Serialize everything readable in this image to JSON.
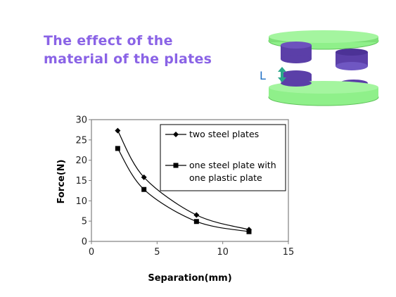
{
  "slide": {
    "title_line1": "The effect of the",
    "title_line2": "material of the plates",
    "title_color": "#8a63e6",
    "diagram_label": "L",
    "diagram_label_color": "#1e6fc4",
    "plate_color": "#8ff08a",
    "puck_color": "#5b3fa8",
    "arrow_color": "#2aa88a"
  },
  "chart_data": {
    "type": "line",
    "xlabel": "Separation(mm)",
    "ylabel": "Force(N)",
    "xlim": [
      0,
      15
    ],
    "ylim": [
      0,
      30
    ],
    "xticks": [
      0,
      5,
      10,
      15
    ],
    "yticks": [
      0,
      5,
      10,
      15,
      20,
      25,
      30
    ],
    "grid": false,
    "legend_position": "top-right",
    "series": [
      {
        "name": "two steel plates",
        "marker": "diamond",
        "x": [
          2,
          4,
          8,
          12
        ],
        "y": [
          27.3,
          15.8,
          6.5,
          2.9
        ]
      },
      {
        "name": "one steel plate with one plastic plate",
        "name_lines": [
          "one steel plate with",
          "one plastic plate"
        ],
        "marker": "square",
        "x": [
          2,
          4,
          8,
          12
        ],
        "y": [
          22.9,
          12.8,
          4.9,
          2.4
        ]
      }
    ]
  }
}
